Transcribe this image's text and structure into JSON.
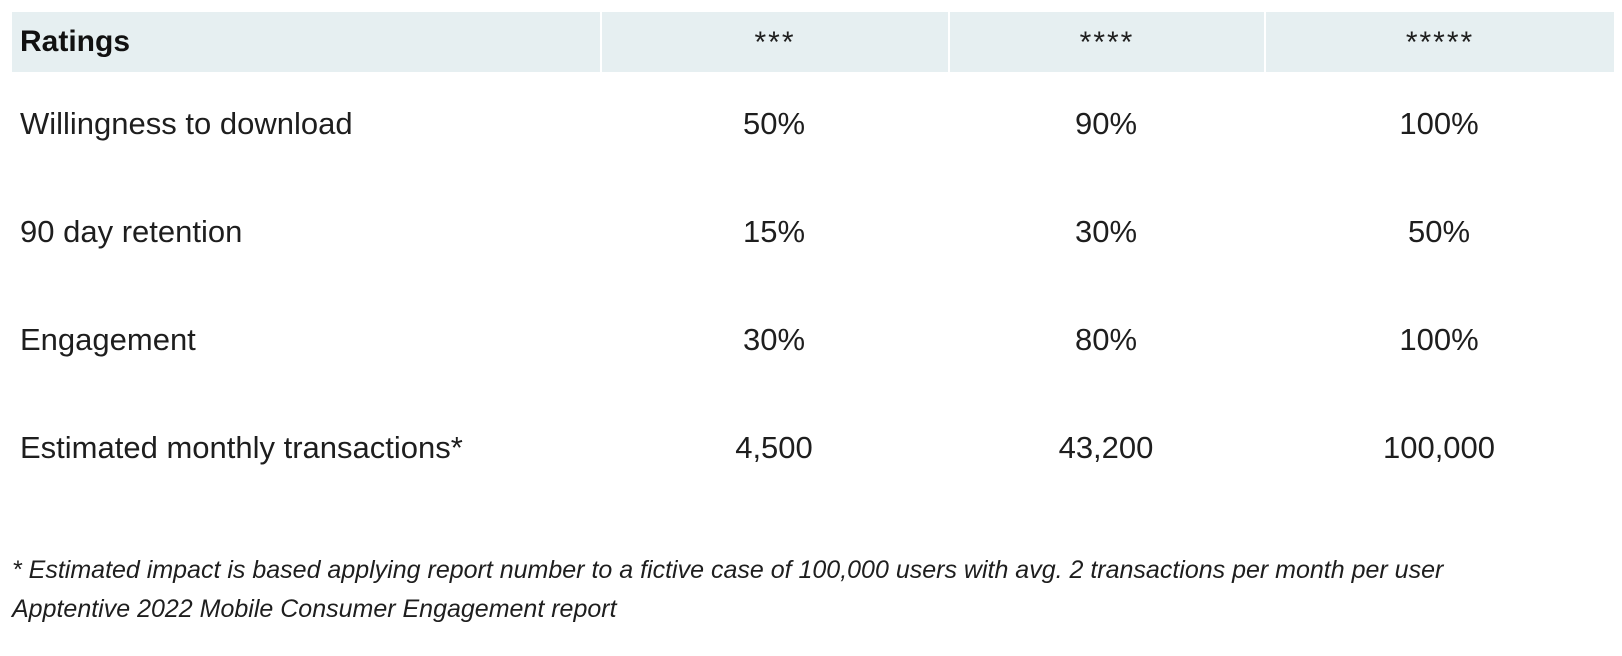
{
  "table": {
    "header": {
      "label": "Ratings",
      "columns": [
        "***",
        "****",
        "*****"
      ]
    },
    "rows": [
      {
        "label": "Willingness to download",
        "values": [
          "50%",
          "90%",
          "100%"
        ]
      },
      {
        "label": "90 day retention",
        "values": [
          "15%",
          "30%",
          "50%"
        ]
      },
      {
        "label": "Engagement",
        "values": [
          "30%",
          "80%",
          "100%"
        ]
      },
      {
        "label": "Estimated monthly transactions*",
        "values": [
          "4,500",
          "43,200",
          "100,000"
        ]
      }
    ]
  },
  "footnote": {
    "line1": "* Estimated impact is based applying report number to a fictive case of 100,000 users with avg. 2 transactions per month per user",
    "line2": "Apptentive 2022 Mobile Consumer Engagement report"
  }
}
